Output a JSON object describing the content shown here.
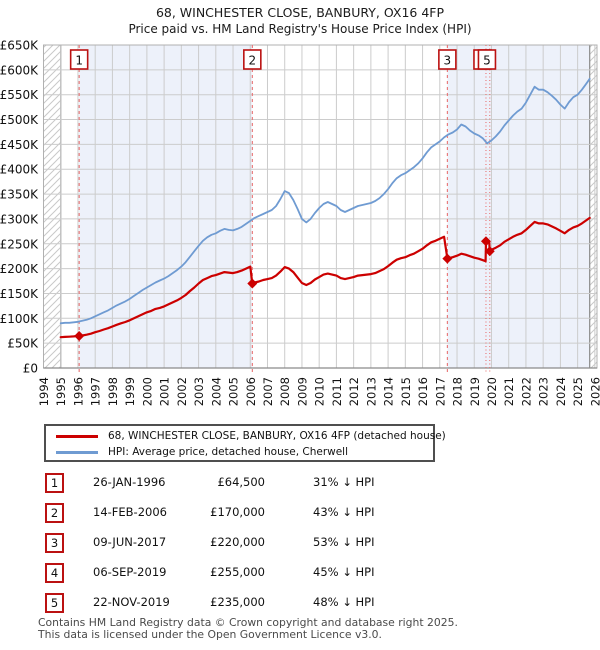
{
  "title": "68, WINCHESTER CLOSE, BANBURY, OX16 4FP",
  "subtitle": "Price paid vs. HM Land Registry's House Price Index (HPI)",
  "legend": {
    "price_label": "68, WINCHESTER CLOSE, BANBURY, OX16 4FP (detached house)",
    "hpi_label": "HPI: Average price, detached house, Cherwell"
  },
  "table": {
    "rows": [
      {
        "num": "1",
        "date": "26-JAN-1996",
        "price": "£64,500",
        "pct": "31% ↓ HPI"
      },
      {
        "num": "2",
        "date": "14-FEB-2006",
        "price": "£170,000",
        "pct": "43% ↓ HPI"
      },
      {
        "num": "3",
        "date": "09-JUN-2017",
        "price": "£220,000",
        "pct": "53% ↓ HPI"
      },
      {
        "num": "4",
        "date": "06-SEP-2019",
        "price": "£255,000",
        "pct": "45% ↓ HPI"
      },
      {
        "num": "5",
        "date": "22-NOV-2019",
        "price": "£235,000",
        "pct": "48% ↓ HPI"
      }
    ]
  },
  "footer": {
    "line1": "Contains HM Land Registry data © Crown copyright and database right 2025.",
    "line2": "This data is licensed under the Open Government Licence v3.0."
  },
  "chart_data": {
    "type": "line",
    "title": "68, WINCHESTER CLOSE, BANBURY, OX16 4FP — Price paid vs. HPI",
    "unit": "GBP thousands",
    "x_axis": {
      "range": [
        1994,
        2026.1
      ],
      "ticks": [
        "1994",
        "1995",
        "1996",
        "1997",
        "1998",
        "1999",
        "2000",
        "2001",
        "2002",
        "2003",
        "2004",
        "2005",
        "2006",
        "2007",
        "2008",
        "2009",
        "2010",
        "2011",
        "2012",
        "2013",
        "2014",
        "2015",
        "2016",
        "2017",
        "2018",
        "2019",
        "2020",
        "2021",
        "2022",
        "2023",
        "2024",
        "2025",
        "2026"
      ]
    },
    "y_axis": {
      "range_k": [
        0,
        650
      ],
      "tick_values_k": [
        0,
        50,
        100,
        150,
        200,
        250,
        300,
        350,
        400,
        450,
        500,
        550,
        600,
        650
      ],
      "ticks": [
        "£0",
        "£50K",
        "£100K",
        "£150K",
        "£200K",
        "£250K",
        "£300K",
        "£350K",
        "£400K",
        "£450K",
        "£500K",
        "£550K",
        "£600K",
        "£650K"
      ]
    },
    "series": [
      {
        "name": "68, WINCHESTER CLOSE, BANBURY, OX16 4FP (detached house)",
        "color": "#cc0000",
        "width": 2.2,
        "points": [
          [
            1995.0,
            62
          ],
          [
            1995.25,
            62.5
          ],
          [
            1995.5,
            63
          ],
          [
            1995.75,
            63.5
          ],
          [
            1996.07,
            64.5
          ],
          [
            1996.25,
            65.5
          ],
          [
            1996.5,
            67
          ],
          [
            1996.75,
            69
          ],
          [
            1997.0,
            72
          ],
          [
            1997.25,
            74.5
          ],
          [
            1997.5,
            77.5
          ],
          [
            1997.75,
            80
          ],
          [
            1998.0,
            83.5
          ],
          [
            1998.25,
            87
          ],
          [
            1998.5,
            90
          ],
          [
            1998.75,
            92.5
          ],
          [
            1999.0,
            96
          ],
          [
            1999.25,
            100
          ],
          [
            1999.5,
            104
          ],
          [
            1999.75,
            108
          ],
          [
            2000.0,
            112
          ],
          [
            2000.25,
            115
          ],
          [
            2000.5,
            119
          ],
          [
            2000.75,
            121
          ],
          [
            2001.0,
            124
          ],
          [
            2001.25,
            128
          ],
          [
            2001.5,
            132
          ],
          [
            2001.75,
            136
          ],
          [
            2002.0,
            141
          ],
          [
            2002.25,
            147
          ],
          [
            2002.5,
            155
          ],
          [
            2002.75,
            162
          ],
          [
            2003.0,
            170
          ],
          [
            2003.25,
            177
          ],
          [
            2003.5,
            181
          ],
          [
            2003.75,
            185
          ],
          [
            2004.0,
            187
          ],
          [
            2004.25,
            190
          ],
          [
            2004.5,
            193
          ],
          [
            2004.75,
            192
          ],
          [
            2005.0,
            191
          ],
          [
            2005.25,
            193
          ],
          [
            2005.5,
            196
          ],
          [
            2005.75,
            200
          ],
          [
            2006.0,
            204
          ],
          [
            2006.12,
            170
          ],
          [
            2006.25,
            172
          ],
          [
            2006.5,
            174
          ],
          [
            2006.75,
            177
          ],
          [
            2007.0,
            179
          ],
          [
            2007.25,
            181
          ],
          [
            2007.5,
            186
          ],
          [
            2007.75,
            194
          ],
          [
            2008.0,
            203
          ],
          [
            2008.25,
            200
          ],
          [
            2008.5,
            193
          ],
          [
            2008.75,
            182
          ],
          [
            2009.0,
            171
          ],
          [
            2009.25,
            167
          ],
          [
            2009.5,
            171
          ],
          [
            2009.75,
            178
          ],
          [
            2010.0,
            183
          ],
          [
            2010.25,
            188
          ],
          [
            2010.5,
            190
          ],
          [
            2010.75,
            188
          ],
          [
            2011.0,
            186
          ],
          [
            2011.25,
            181
          ],
          [
            2011.5,
            179
          ],
          [
            2011.75,
            181
          ],
          [
            2012.0,
            183
          ],
          [
            2012.25,
            186
          ],
          [
            2012.5,
            187
          ],
          [
            2012.75,
            188
          ],
          [
            2013.0,
            189
          ],
          [
            2013.25,
            191
          ],
          [
            2013.5,
            195
          ],
          [
            2013.75,
            199
          ],
          [
            2014.0,
            205
          ],
          [
            2014.25,
            212
          ],
          [
            2014.5,
            218
          ],
          [
            2014.75,
            221
          ],
          [
            2015.0,
            223
          ],
          [
            2015.25,
            227
          ],
          [
            2015.5,
            230
          ],
          [
            2015.75,
            235
          ],
          [
            2016.0,
            240
          ],
          [
            2016.25,
            247
          ],
          [
            2016.5,
            253
          ],
          [
            2016.75,
            256
          ],
          [
            2017.0,
            260
          ],
          [
            2017.25,
            264
          ],
          [
            2017.44,
            220
          ],
          [
            2017.5,
            221
          ],
          [
            2017.75,
            223
          ],
          [
            2018.0,
            226
          ],
          [
            2018.25,
            230
          ],
          [
            2018.5,
            228
          ],
          [
            2018.75,
            225
          ],
          [
            2019.0,
            222
          ],
          [
            2019.25,
            220
          ],
          [
            2019.5,
            217
          ],
          [
            2019.66,
            215
          ],
          [
            2019.68,
            255
          ],
          [
            2019.87,
            254
          ],
          [
            2019.9,
            235
          ],
          [
            2020.0,
            238
          ],
          [
            2020.25,
            242
          ],
          [
            2020.5,
            247
          ],
          [
            2020.75,
            254
          ],
          [
            2021.0,
            259
          ],
          [
            2021.25,
            264
          ],
          [
            2021.5,
            268
          ],
          [
            2021.75,
            271
          ],
          [
            2022.0,
            278
          ],
          [
            2022.25,
            286
          ],
          [
            2022.5,
            294
          ],
          [
            2022.75,
            291
          ],
          [
            2023.0,
            291
          ],
          [
            2023.25,
            289
          ],
          [
            2023.5,
            285
          ],
          [
            2023.75,
            281
          ],
          [
            2024.0,
            276
          ],
          [
            2024.25,
            271
          ],
          [
            2024.5,
            278
          ],
          [
            2024.75,
            283
          ],
          [
            2025.0,
            286
          ],
          [
            2025.25,
            291
          ],
          [
            2025.5,
            297
          ],
          [
            2025.7,
            302
          ]
        ]
      },
      {
        "name": "HPI: Average price, detached house, Cherwell",
        "color": "#6f9bd2",
        "width": 1.8,
        "points": [
          [
            1995.0,
            90
          ],
          [
            1995.25,
            91
          ],
          [
            1995.5,
            91
          ],
          [
            1995.75,
            92
          ],
          [
            1996.0,
            93
          ],
          [
            1996.25,
            95
          ],
          [
            1996.5,
            97
          ],
          [
            1996.75,
            100
          ],
          [
            1997.0,
            104
          ],
          [
            1997.25,
            108
          ],
          [
            1997.5,
            112
          ],
          [
            1997.75,
            116
          ],
          [
            1998.0,
            121
          ],
          [
            1998.25,
            126
          ],
          [
            1998.5,
            130
          ],
          [
            1998.75,
            134
          ],
          [
            1999.0,
            139
          ],
          [
            1999.25,
            145
          ],
          [
            1999.5,
            151
          ],
          [
            1999.75,
            157
          ],
          [
            2000.0,
            162
          ],
          [
            2000.25,
            167
          ],
          [
            2000.5,
            172
          ],
          [
            2000.75,
            176
          ],
          [
            2001.0,
            180
          ],
          [
            2001.25,
            185
          ],
          [
            2001.5,
            191
          ],
          [
            2001.75,
            197
          ],
          [
            2002.0,
            204
          ],
          [
            2002.25,
            213
          ],
          [
            2002.5,
            224
          ],
          [
            2002.75,
            235
          ],
          [
            2003.0,
            246
          ],
          [
            2003.25,
            256
          ],
          [
            2003.5,
            263
          ],
          [
            2003.75,
            268
          ],
          [
            2004.0,
            271
          ],
          [
            2004.25,
            276
          ],
          [
            2004.5,
            280
          ],
          [
            2004.75,
            278
          ],
          [
            2005.0,
            277
          ],
          [
            2005.25,
            280
          ],
          [
            2005.5,
            284
          ],
          [
            2005.75,
            290
          ],
          [
            2006.0,
            296
          ],
          [
            2006.25,
            302
          ],
          [
            2006.5,
            306
          ],
          [
            2006.75,
            310
          ],
          [
            2007.0,
            314
          ],
          [
            2007.25,
            318
          ],
          [
            2007.5,
            326
          ],
          [
            2007.75,
            340
          ],
          [
            2008.0,
            356
          ],
          [
            2008.25,
            352
          ],
          [
            2008.5,
            338
          ],
          [
            2008.75,
            320
          ],
          [
            2009.0,
            300
          ],
          [
            2009.25,
            293
          ],
          [
            2009.5,
            300
          ],
          [
            2009.75,
            312
          ],
          [
            2010.0,
            322
          ],
          [
            2010.25,
            330
          ],
          [
            2010.5,
            334
          ],
          [
            2010.75,
            330
          ],
          [
            2011.0,
            326
          ],
          [
            2011.25,
            318
          ],
          [
            2011.5,
            314
          ],
          [
            2011.75,
            318
          ],
          [
            2012.0,
            322
          ],
          [
            2012.25,
            326
          ],
          [
            2012.5,
            328
          ],
          [
            2012.75,
            330
          ],
          [
            2013.0,
            332
          ],
          [
            2013.25,
            336
          ],
          [
            2013.5,
            342
          ],
          [
            2013.75,
            350
          ],
          [
            2014.0,
            360
          ],
          [
            2014.25,
            372
          ],
          [
            2014.5,
            382
          ],
          [
            2014.75,
            388
          ],
          [
            2015.0,
            392
          ],
          [
            2015.25,
            398
          ],
          [
            2015.5,
            404
          ],
          [
            2015.75,
            412
          ],
          [
            2016.0,
            422
          ],
          [
            2016.25,
            434
          ],
          [
            2016.5,
            444
          ],
          [
            2016.75,
            450
          ],
          [
            2017.0,
            456
          ],
          [
            2017.25,
            464
          ],
          [
            2017.5,
            470
          ],
          [
            2017.75,
            474
          ],
          [
            2018.0,
            480
          ],
          [
            2018.25,
            490
          ],
          [
            2018.5,
            486
          ],
          [
            2018.75,
            478
          ],
          [
            2019.0,
            472
          ],
          [
            2019.25,
            468
          ],
          [
            2019.5,
            462
          ],
          [
            2019.75,
            452
          ],
          [
            2020.0,
            458
          ],
          [
            2020.25,
            466
          ],
          [
            2020.5,
            476
          ],
          [
            2020.75,
            488
          ],
          [
            2021.0,
            498
          ],
          [
            2021.25,
            508
          ],
          [
            2021.5,
            516
          ],
          [
            2021.75,
            522
          ],
          [
            2022.0,
            534
          ],
          [
            2022.25,
            550
          ],
          [
            2022.5,
            566
          ],
          [
            2022.75,
            560
          ],
          [
            2023.0,
            560
          ],
          [
            2023.25,
            555
          ],
          [
            2023.5,
            548
          ],
          [
            2023.75,
            540
          ],
          [
            2024.0,
            530
          ],
          [
            2024.25,
            522
          ],
          [
            2024.5,
            535
          ],
          [
            2024.75,
            545
          ],
          [
            2025.0,
            550
          ],
          [
            2025.25,
            560
          ],
          [
            2025.5,
            572
          ],
          [
            2025.7,
            582
          ]
        ]
      }
    ],
    "sales": [
      {
        "label": "1",
        "x": 1996.07,
        "price_k": 64.5,
        "line_style": "dash",
        "box_dx": -8.5
      },
      {
        "label": "2",
        "x": 2006.12,
        "price_k": 170,
        "line_style": "dash",
        "box_dx": -8.5
      },
      {
        "label": "3",
        "x": 2017.44,
        "price_k": 220,
        "line_style": "dash",
        "box_dx": -8.5
      },
      {
        "label": "4",
        "x": 2019.68,
        "price_k": 255,
        "line_style": "dot",
        "box_dx": -12
      },
      {
        "label": "5",
        "x": 2019.9,
        "price_k": 235,
        "line_style": "dot",
        "box_dx": -11.3
      }
    ],
    "shaded_regions": [
      [
        1996.07,
        2006.12
      ],
      [
        2017.44,
        2025.7
      ]
    ],
    "hatched_regions": [
      [
        1994,
        1995
      ],
      [
        2025.7,
        2026.1
      ]
    ],
    "legend_position": "bottom",
    "grid": true,
    "colors": {
      "shade": "#edf1fa",
      "grid": "#cccccc",
      "border": "#b0b0b0",
      "hatch": "#c9c9c9",
      "edge_line": "#8a8a8a",
      "marker_line": "#e87272",
      "marker_box_border": "#bb1111",
      "axis_text": "#111111"
    }
  }
}
